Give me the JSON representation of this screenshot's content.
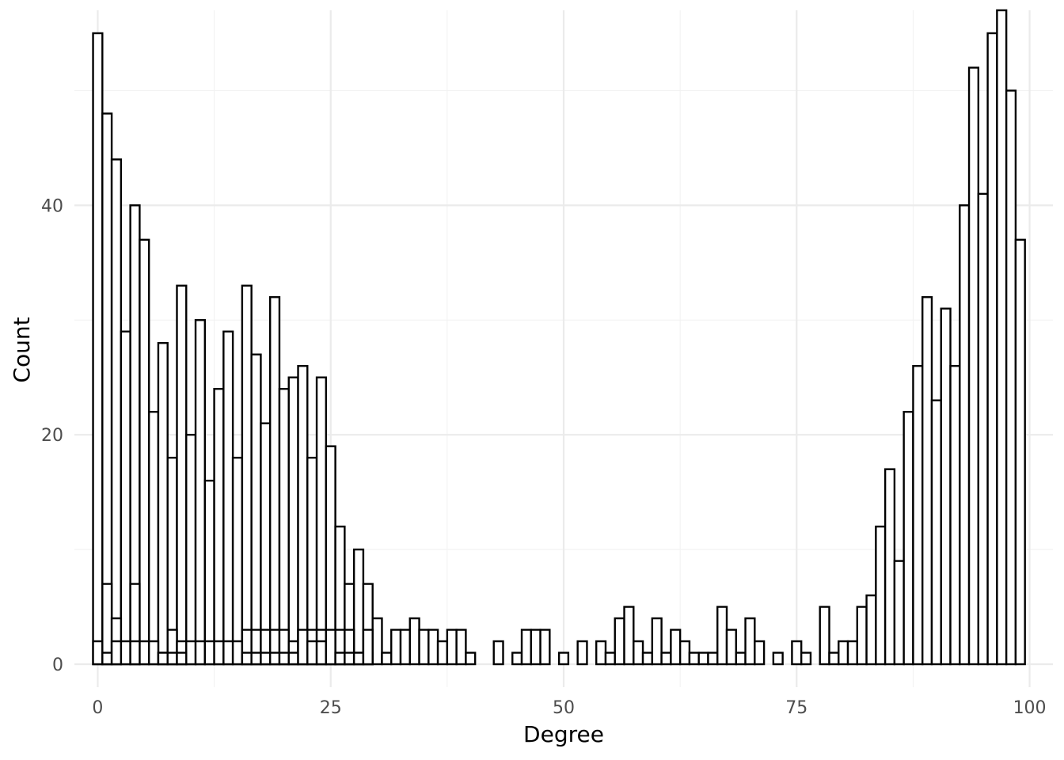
{
  "chart_data": {
    "type": "bar",
    "xlabel": "Degree",
    "ylabel": "Count",
    "xlim": [
      -2.5,
      102.5
    ],
    "ylim": [
      -2.0,
      57.0
    ],
    "bin_width": 1,
    "grid": true,
    "x_ticks": [
      0,
      25,
      50,
      75,
      100
    ],
    "y_ticks": [
      0,
      20,
      40
    ],
    "series": [
      {
        "x": [
          0,
          1,
          2,
          3,
          4,
          5,
          6,
          7,
          8,
          9,
          10,
          11,
          12,
          13,
          14,
          15,
          16,
          17,
          18,
          19,
          20,
          21,
          22,
          23,
          24,
          25,
          26,
          27,
          28,
          29,
          30,
          31,
          32,
          33,
          34,
          35,
          36,
          37,
          38,
          39,
          40,
          41,
          42,
          43,
          44,
          45,
          46,
          47,
          48,
          49,
          50,
          51,
          52,
          53,
          54,
          55,
          56,
          57,
          58,
          59,
          60,
          61,
          62,
          63,
          64,
          65,
          66,
          67,
          68,
          69,
          70,
          71,
          72,
          73,
          74,
          75,
          76,
          77,
          78,
          79,
          80,
          81,
          82,
          83,
          84,
          85,
          86,
          87,
          88,
          89,
          90,
          91,
          92,
          93,
          94,
          95,
          96,
          97,
          98,
          99
        ],
        "values": [
          55,
          48,
          44,
          29,
          40,
          37,
          22,
          28,
          18,
          33,
          20,
          30,
          16,
          24,
          29,
          18,
          33,
          27,
          21,
          32,
          24,
          25,
          26,
          18,
          25,
          19,
          12,
          7,
          10,
          7,
          4,
          1,
          3,
          3,
          4,
          3,
          3,
          2,
          3,
          3,
          1,
          0,
          0,
          2,
          0,
          1,
          3,
          3,
          3,
          0,
          1,
          0,
          2,
          0,
          2,
          1,
          4,
          5,
          2,
          1,
          4,
          1,
          3,
          2,
          1,
          1,
          1,
          5,
          3,
          1,
          4,
          2,
          0,
          1,
          0,
          2,
          1,
          0,
          5,
          1,
          2,
          2,
          5,
          6,
          12,
          17,
          9,
          22,
          26,
          32,
          23,
          31,
          26,
          40,
          52,
          41,
          55,
          57,
          50,
          37
        ]
      },
      {
        "x": [
          0,
          1,
          2,
          3,
          4,
          5,
          6,
          7,
          8,
          9,
          10,
          11,
          12,
          13,
          14,
          15,
          16,
          17,
          18,
          19,
          20,
          21,
          22,
          23,
          24,
          25,
          26,
          27,
          28,
          29
        ],
        "values": [
          2,
          7,
          4,
          2,
          7,
          2,
          2,
          1,
          3,
          2,
          2,
          2,
          2,
          2,
          2,
          2,
          3,
          3,
          3,
          3,
          3,
          2,
          2,
          3,
          3,
          2,
          3,
          3,
          1,
          1
        ]
      },
      {
        "x": [
          0,
          1,
          2,
          3,
          4,
          5,
          6,
          7,
          8,
          9,
          10,
          11,
          12,
          13,
          14,
          15,
          16,
          17,
          18,
          19,
          20,
          21,
          22,
          23,
          24,
          25,
          26,
          27,
          28,
          29
        ],
        "values": [
          0,
          1,
          2,
          0,
          2,
          0,
          0,
          1,
          1,
          1,
          0,
          0,
          0,
          0,
          0,
          0,
          1,
          1,
          1,
          1,
          1,
          1,
          3,
          2,
          2,
          3,
          1,
          1,
          1,
          3
        ]
      }
    ]
  }
}
